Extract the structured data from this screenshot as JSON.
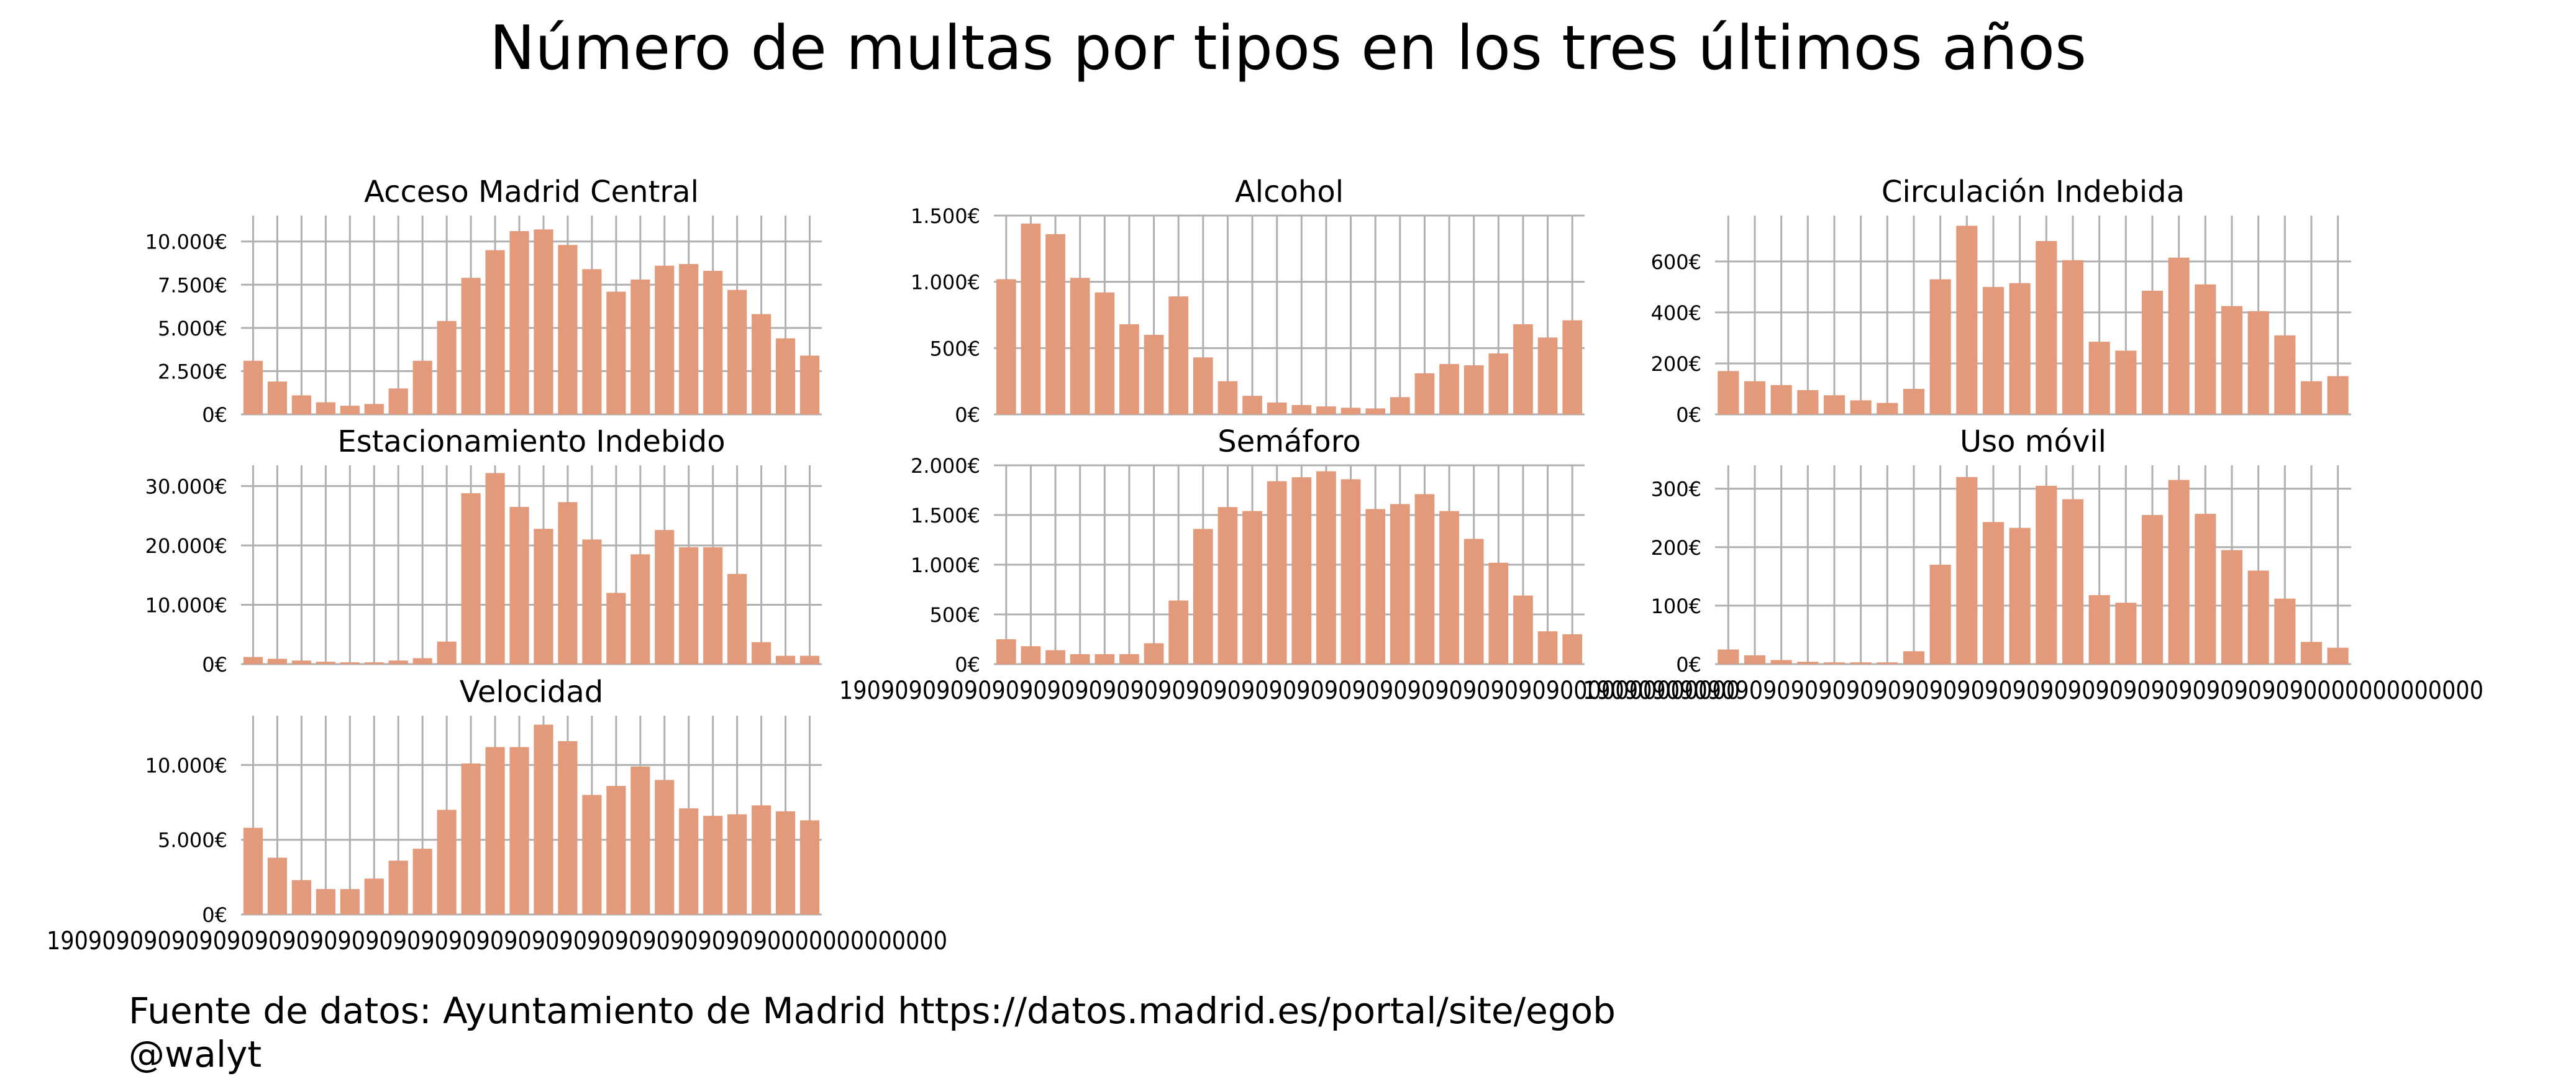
{
  "title": "Número de multas por tipos en los tres últimos años",
  "footer": {
    "source": "Fuente de datos: Ayuntamiento de Madrid https://datos.madrid.es/portal/site/egob",
    "handle": "@walyt"
  },
  "colors": {
    "bar": "#e29a7b",
    "grid": "#b0b0b0"
  },
  "x_tick_label_overlap": "19090909090909090909090909090909090909090909090909090000000000000",
  "chart_data": [
    {
      "type": "bar",
      "title": "Acceso Madrid Central",
      "ylim": [
        0,
        11500
      ],
      "yticks": [
        0,
        2500,
        5000,
        7500,
        10000
      ],
      "ytick_labels": [
        "0€",
        "2.500€",
        "5.000€",
        "7.500€",
        "10.000€"
      ],
      "values": [
        3100,
        1900,
        1100,
        700,
        500,
        600,
        1500,
        3100,
        5400,
        7900,
        9500,
        10600,
        10700,
        9800,
        8400,
        7100,
        7800,
        8600,
        8700,
        8300,
        7200,
        5800,
        4400,
        3400
      ],
      "grid": true
    },
    {
      "type": "bar",
      "title": "Alcohol",
      "ylim": [
        0,
        1500
      ],
      "yticks": [
        0,
        500,
        1000,
        1500
      ],
      "ytick_labels": [
        "0€",
        "500€",
        "1.000€",
        "1.500€"
      ],
      "values": [
        1020,
        1440,
        1360,
        1030,
        920,
        680,
        600,
        890,
        430,
        250,
        140,
        90,
        70,
        60,
        50,
        45,
        130,
        310,
        380,
        370,
        460,
        680,
        580,
        710
      ],
      "grid": true
    },
    {
      "type": "bar",
      "title": "Circulación Indebida",
      "ylim": [
        0,
        780
      ],
      "yticks": [
        0,
        200,
        400,
        600
      ],
      "ytick_labels": [
        "0€",
        "200€",
        "400€",
        "600€"
      ],
      "values": [
        170,
        130,
        115,
        95,
        75,
        55,
        45,
        100,
        530,
        740,
        500,
        515,
        680,
        605,
        285,
        250,
        485,
        615,
        510,
        425,
        405,
        310,
        130,
        150
      ],
      "grid": true
    },
    {
      "type": "bar",
      "title": "Estacionamiento Indebido",
      "ylim": [
        0,
        33500
      ],
      "yticks": [
        0,
        10000,
        20000,
        30000
      ],
      "ytick_labels": [
        "0€",
        "10.000€",
        "20.000€",
        "30.000€"
      ],
      "values": [
        1200,
        900,
        600,
        400,
        300,
        300,
        600,
        1000,
        3800,
        28800,
        32200,
        26500,
        22800,
        27300,
        21000,
        12000,
        18500,
        22600,
        19700,
        19700,
        15200,
        3700,
        1400,
        1400
      ],
      "grid": true
    },
    {
      "type": "bar",
      "title": "Semáforo",
      "ylim": [
        0,
        2000
      ],
      "yticks": [
        0,
        500,
        1000,
        1500,
        2000
      ],
      "ytick_labels": [
        "0€",
        "500€",
        "1.000€",
        "1.500€",
        "2.000€"
      ],
      "values": [
        250,
        180,
        140,
        100,
        100,
        100,
        210,
        640,
        1360,
        1580,
        1540,
        1840,
        1880,
        1940,
        1860,
        1560,
        1610,
        1710,
        1540,
        1260,
        1020,
        690,
        330,
        300
      ],
      "grid": true
    },
    {
      "type": "bar",
      "title": "Uso móvil",
      "ylim": [
        0,
        340
      ],
      "yticks": [
        0,
        100,
        200,
        300
      ],
      "ytick_labels": [
        "0€",
        "100€",
        "200€",
        "300€"
      ],
      "values": [
        25,
        15,
        7,
        4,
        3,
        3,
        3,
        22,
        170,
        320,
        243,
        233,
        305,
        282,
        118,
        105,
        255,
        315,
        257,
        195,
        160,
        112,
        38,
        28
      ],
      "grid": true
    },
    {
      "type": "bar",
      "title": "Velocidad",
      "ylim": [
        0,
        13300
      ],
      "yticks": [
        0,
        5000,
        10000
      ],
      "ytick_labels": [
        "0€",
        "5.000€",
        "10.000€"
      ],
      "values": [
        5800,
        3800,
        2300,
        1700,
        1700,
        2400,
        3600,
        4400,
        7000,
        10100,
        11200,
        11200,
        12700,
        11600,
        8000,
        8600,
        9900,
        9000,
        7100,
        6600,
        6700,
        7300,
        6900,
        6300
      ],
      "grid": true
    }
  ]
}
